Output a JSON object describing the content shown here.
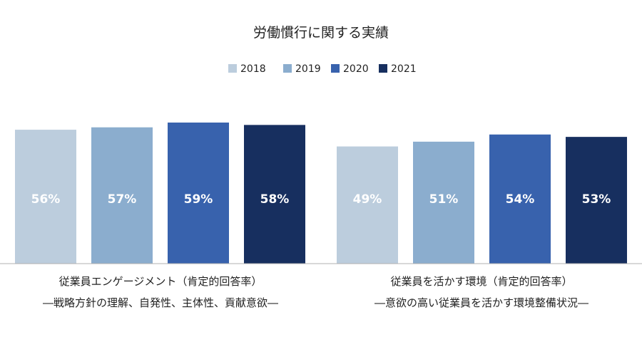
{
  "chart_data": {
    "type": "bar",
    "title": "労働慣行に関する実績",
    "legend_placement": "top-center",
    "categories": [
      [
        "従業員エンゲージメント（肯定的回答率）",
        "―戦略方針の理解、自発性、主体性、貢献意欲―"
      ],
      [
        "従業員を活かす環境（肯定的回答率）",
        "―意欲の高い従業員を活かす環境整備状況―"
      ]
    ],
    "series": [
      {
        "name": "2018",
        "color": "#bccddd",
        "values": [
          56,
          49
        ]
      },
      {
        "name": "2019",
        "color": "#8badce",
        "values": [
          57,
          51
        ]
      },
      {
        "name": "2020",
        "color": "#3862ad",
        "values": [
          59,
          54
        ]
      },
      {
        "name": "2021",
        "color": "#172f5f",
        "values": [
          58,
          53
        ]
      }
    ],
    "value_suffix": "%",
    "ylim": [
      0,
      59
    ],
    "grid": false
  }
}
